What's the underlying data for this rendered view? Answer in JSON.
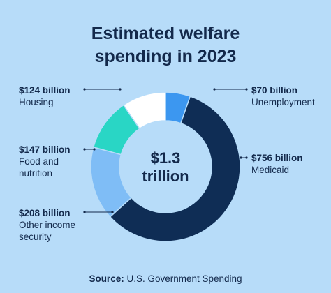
{
  "title_lines": [
    "Estimated welfare",
    "spending in 2023"
  ],
  "center_lines": [
    "$1.3",
    "trillion"
  ],
  "source_label": "Source:",
  "source_text": "U.S. Government Spending",
  "chart_data": {
    "type": "pie",
    "donut": true,
    "unit": "billion USD",
    "slices": [
      {
        "name": "Unemployment",
        "value": 70,
        "value_label": "$70 billion",
        "color": "#3c97f0"
      },
      {
        "name": "Medicaid",
        "value": 756,
        "value_label": "$756 billion",
        "color": "#0f2d55"
      },
      {
        "name": "Other income security",
        "value": 208,
        "value_label": "$208 billion",
        "color": "#7fbdf6"
      },
      {
        "name": "Food and nutrition",
        "value": 147,
        "value_label": "$147 billion",
        "color": "#29d6c5"
      },
      {
        "name": "Housing",
        "value": 124,
        "value_label": "$124 billion",
        "color": "#ffffff"
      }
    ]
  },
  "labels": {
    "unemployment": {
      "value": "$70 billion",
      "name_lines": [
        "Unemployment"
      ]
    },
    "medicaid": {
      "value": "$756 billion",
      "name_lines": [
        "Medicaid"
      ]
    },
    "other": {
      "value": "$208 billion",
      "name_lines": [
        "Other income",
        "security"
      ]
    },
    "food": {
      "value": "$147 billion",
      "name_lines": [
        "Food and",
        "nutrition"
      ]
    },
    "housing": {
      "value": "$124 billion",
      "name_lines": [
        "Housing"
      ]
    }
  }
}
